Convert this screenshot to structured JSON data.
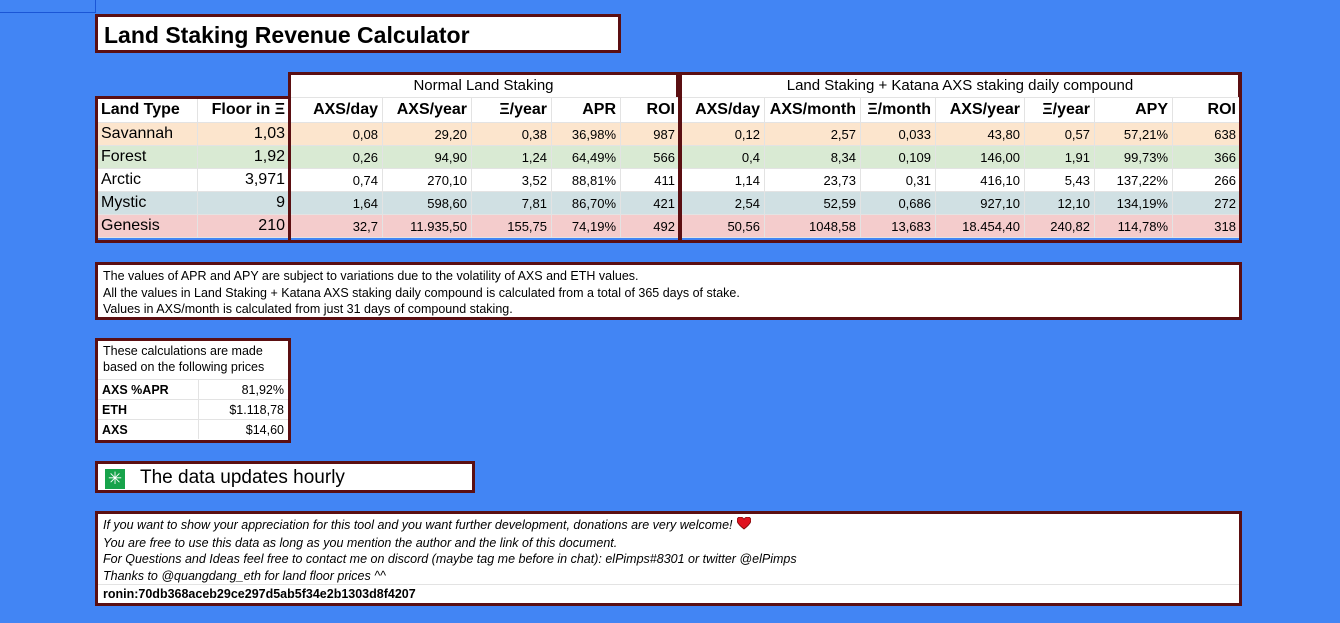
{
  "title": "Land Staking Revenue Calculator",
  "normal_header": "Normal Land Staking",
  "katana_header": "Land Staking + Katana AXS staking daily compound",
  "left_columns": [
    "Land Type",
    "Floor in Ξ"
  ],
  "normal_columns": [
    "AXS/day",
    "AXS/year",
    "Ξ/year",
    "APR",
    "ROI"
  ],
  "katana_columns": [
    "AXS/day",
    "AXS/month",
    "Ξ/month",
    "AXS/year",
    "Ξ/year",
    "APY",
    "ROI"
  ],
  "row_colors": [
    "#fce5cd",
    "#d9ead3",
    "#ffffff",
    "#d0e0e3",
    "#f4cccc"
  ],
  "rows": [
    {
      "name": "Savannah",
      "floor": "1,03",
      "normal": [
        "0,08",
        "29,20",
        "0,38",
        "36,98%",
        "987"
      ],
      "katana": [
        "0,12",
        "2,57",
        "0,033",
        "43,80",
        "0,57",
        "57,21%",
        "638"
      ]
    },
    {
      "name": "Forest",
      "floor": "1,92",
      "normal": [
        "0,26",
        "94,90",
        "1,24",
        "64,49%",
        "566"
      ],
      "katana": [
        "0,4",
        "8,34",
        "0,109",
        "146,00",
        "1,91",
        "99,73%",
        "366"
      ]
    },
    {
      "name": "Arctic",
      "floor": "3,971",
      "normal": [
        "0,74",
        "270,10",
        "3,52",
        "88,81%",
        "411"
      ],
      "katana": [
        "1,14",
        "23,73",
        "0,31",
        "416,10",
        "5,43",
        "137,22%",
        "266"
      ]
    },
    {
      "name": "Mystic",
      "floor": "9",
      "normal": [
        "1,64",
        "598,60",
        "7,81",
        "86,70%",
        "421"
      ],
      "katana": [
        "2,54",
        "52,59",
        "0,686",
        "927,10",
        "12,10",
        "134,19%",
        "272"
      ]
    },
    {
      "name": "Genesis",
      "floor": "210",
      "normal": [
        "32,7",
        "11.935,50",
        "155,75",
        "74,19%",
        "492"
      ],
      "katana": [
        "50,56",
        "1048,58",
        "13,683",
        "18.454,40",
        "240,82",
        "114,78%",
        "318"
      ]
    }
  ],
  "notes": [
    "The values of APR and APY are subject to variations due to the volatility of AXS and ETH values.",
    "All the values in Land Staking + Katana AXS staking daily compound is calculated from a total of 365 days of stake.",
    "Values in AXS/month is calculated from just 31 days of compound staking."
  ],
  "prices_intro": "These calculations are made based on the following prices",
  "prices": [
    {
      "label": "AXS %APR",
      "value": "81,92%"
    },
    {
      "label": "ETH",
      "value": "$1.118,78"
    },
    {
      "label": "AXS",
      "value": "$14,60"
    }
  ],
  "update_icon": "sparkle-icon",
  "update_text": "The data updates hourly",
  "footer": {
    "lines": [
      "If you want to show your appreciation for this tool and you want further development, donations are very welcome!",
      "You are free to use this data as long as you mention the author and the link of this document.",
      "For Questions and Ideas feel free to contact me on discord (maybe tag me before in chat): elPimps#8301 or twitter @elPimps",
      "Thanks to @quangdang_eth for land floor prices ^^"
    ],
    "heart_icon": "heart-icon",
    "ronin": "ronin:70db368aceb29ce297d5ab5f34e2b1303d8f4207"
  }
}
